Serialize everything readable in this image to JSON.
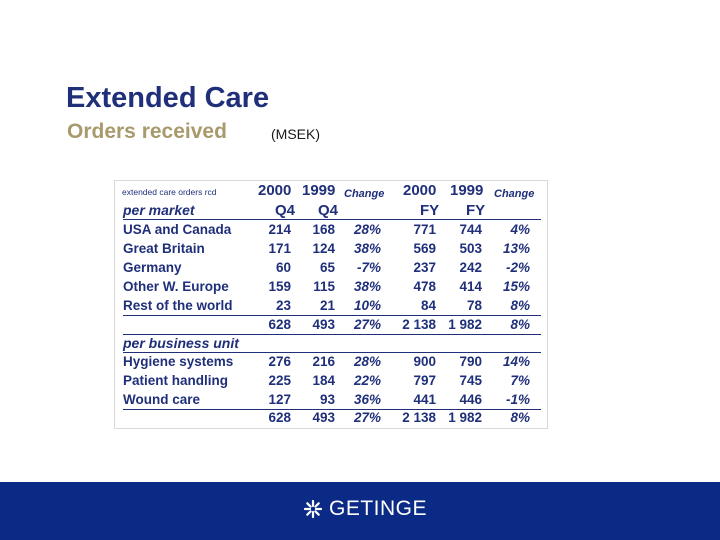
{
  "slide": {
    "title": "Extended Care",
    "subtitle": "Orders received",
    "unit": "(MSEK)"
  },
  "table": {
    "corner_label": "extended care orders rcd",
    "header_years": [
      "2000",
      "1999",
      "2000",
      "1999"
    ],
    "header_change": [
      "Change",
      "Change"
    ],
    "header_periods": [
      "Q4",
      "Q4",
      "FY",
      "FY"
    ],
    "group_market": "per market",
    "group_business": "per business unit",
    "market_rows": [
      {
        "label": "USA and Canada",
        "q4_2000": "214",
        "q4_1999": "168",
        "q4_change": "28%",
        "fy_2000": "771",
        "fy_1999": "744",
        "fy_change": "4%"
      },
      {
        "label": "Great Britain",
        "q4_2000": "171",
        "q4_1999": "124",
        "q4_change": "38%",
        "fy_2000": "569",
        "fy_1999": "503",
        "fy_change": "13%"
      },
      {
        "label": "Germany",
        "q4_2000": "60",
        "q4_1999": "65",
        "q4_change": "-7%",
        "fy_2000": "237",
        "fy_1999": "242",
        "fy_change": "-2%"
      },
      {
        "label": "Other W. Europe",
        "q4_2000": "159",
        "q4_1999": "115",
        "q4_change": "38%",
        "fy_2000": "478",
        "fy_1999": "414",
        "fy_change": "15%"
      },
      {
        "label": "Rest of the world",
        "q4_2000": "23",
        "q4_1999": "21",
        "q4_change": "10%",
        "fy_2000": "84",
        "fy_1999": "78",
        "fy_change": "8%"
      }
    ],
    "market_total": {
      "q4_2000": "628",
      "q4_1999": "493",
      "q4_change": "27%",
      "fy_2000": "2 138",
      "fy_1999": "1 982",
      "fy_change": "8%"
    },
    "business_rows": [
      {
        "label": "Hygiene systems",
        "q4_2000": "276",
        "q4_1999": "216",
        "q4_change": "28%",
        "fy_2000": "900",
        "fy_1999": "790",
        "fy_change": "14%"
      },
      {
        "label": "Patient handling",
        "q4_2000": "225",
        "q4_1999": "184",
        "q4_change": "22%",
        "fy_2000": "797",
        "fy_1999": "745",
        "fy_change": "7%"
      },
      {
        "label": "Wound care",
        "q4_2000": "127",
        "q4_1999": "93",
        "q4_change": "36%",
        "fy_2000": "441",
        "fy_1999": "446",
        "fy_change": "-1%"
      }
    ],
    "business_total": {
      "q4_2000": "628",
      "q4_1999": "493",
      "q4_change": "27%",
      "fy_2000": "2 138",
      "fy_1999": "1 982",
      "fy_change": "8%"
    }
  },
  "footer": {
    "logo_text": "GETINGE",
    "logo_icon": "getinge-star-icon",
    "background_color": "#0b2a85"
  },
  "colors": {
    "title": "#1f2f7a",
    "subtitle": "#a89a6c",
    "table_text": "#1f2f7a"
  }
}
